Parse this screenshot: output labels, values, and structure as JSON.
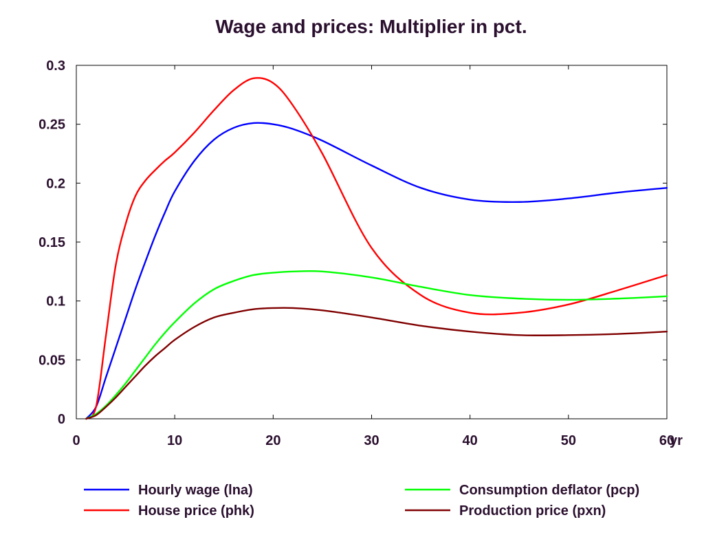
{
  "chart_data": {
    "type": "line",
    "title": "Wage and prices: Multiplier in pct.",
    "xlabel": "",
    "ylabel": "",
    "x_unit_label": "yr",
    "xlim": [
      0,
      60
    ],
    "ylim": [
      0,
      0.3
    ],
    "x_ticks": [
      0,
      10,
      20,
      30,
      40,
      50,
      60
    ],
    "x_tick_labels": [
      "0",
      "10",
      "20",
      "30",
      "40",
      "50",
      "60"
    ],
    "y_ticks": [
      0,
      0.05,
      0.1,
      0.15,
      0.2,
      0.25,
      0.3
    ],
    "y_tick_labels": [
      "0",
      "0.05",
      "0.1",
      "0.15",
      "0.2",
      "0.25",
      "0.3"
    ],
    "grid": false,
    "legend_position": "bottom",
    "series": [
      {
        "name": "Hourly wage (lna)",
        "color": "#0000ff",
        "x": [
          1,
          2,
          3,
          4,
          5,
          6,
          7,
          8,
          9,
          10,
          12,
          14,
          16,
          18,
          20,
          22,
          25,
          30,
          35,
          40,
          45,
          50,
          55,
          60
        ],
        "y": [
          0,
          0.01,
          0.035,
          0.06,
          0.085,
          0.11,
          0.133,
          0.155,
          0.175,
          0.193,
          0.219,
          0.237,
          0.247,
          0.251,
          0.25,
          0.246,
          0.236,
          0.215,
          0.196,
          0.186,
          0.184,
          0.187,
          0.192,
          0.196
        ]
      },
      {
        "name": "House price (phk)",
        "color": "#ff0000",
        "x": [
          1,
          2,
          3,
          4,
          5,
          6,
          7,
          8,
          9,
          10,
          12,
          14,
          16,
          18,
          20,
          22,
          25,
          30,
          35,
          40,
          45,
          50,
          55,
          60
        ],
        "y": [
          0,
          0.01,
          0.07,
          0.13,
          0.165,
          0.189,
          0.202,
          0.211,
          0.219,
          0.226,
          0.243,
          0.262,
          0.279,
          0.289,
          0.285,
          0.266,
          0.225,
          0.145,
          0.105,
          0.09,
          0.09,
          0.097,
          0.109,
          0.122
        ]
      },
      {
        "name": "Consumption deflator (pcp)",
        "color": "#00ff00",
        "x": [
          1,
          2,
          3,
          4,
          5,
          6,
          7,
          8,
          9,
          10,
          12,
          14,
          16,
          18,
          20,
          22,
          25,
          30,
          35,
          40,
          45,
          50,
          55,
          60
        ],
        "y": [
          0,
          0.004,
          0.011,
          0.02,
          0.03,
          0.041,
          0.052,
          0.063,
          0.073,
          0.082,
          0.098,
          0.11,
          0.117,
          0.122,
          0.124,
          0.125,
          0.125,
          0.12,
          0.112,
          0.105,
          0.102,
          0.101,
          0.102,
          0.104
        ]
      },
      {
        "name": "Production price (pxn)",
        "color": "#800000",
        "x": [
          1,
          2,
          3,
          4,
          5,
          6,
          7,
          8,
          9,
          10,
          12,
          14,
          16,
          18,
          20,
          22,
          25,
          30,
          35,
          40,
          45,
          50,
          55,
          60
        ],
        "y": [
          0,
          0.003,
          0.01,
          0.018,
          0.027,
          0.036,
          0.045,
          0.053,
          0.06,
          0.067,
          0.078,
          0.086,
          0.09,
          0.093,
          0.094,
          0.094,
          0.092,
          0.086,
          0.079,
          0.074,
          0.071,
          0.071,
          0.072,
          0.074
        ]
      }
    ]
  }
}
